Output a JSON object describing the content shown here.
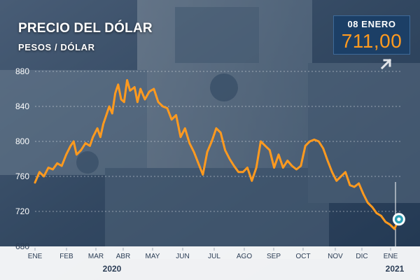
{
  "header": {
    "title": "PRECIO DEL DÓLAR",
    "subtitle": "PESOS / DÓLAR"
  },
  "badge": {
    "date": "08 ENERO",
    "value": "711,00",
    "arrow_icon": "arrow-up-right-icon"
  },
  "colors": {
    "line": "#ff9a1f",
    "badge_bg": "#1c3f66",
    "text": "#ffffff",
    "marker_ring": "#2a9fb5"
  },
  "chart_data": {
    "type": "line",
    "title": "PRECIO DEL DÓLAR",
    "ylabel": "PESOS / DÓLAR",
    "xlabel": "",
    "ylim": [
      680,
      880
    ],
    "yticks": [
      680,
      720,
      760,
      800,
      840,
      880
    ],
    "grid": true,
    "x_tick_labels": [
      "ENE",
      "FEB",
      "MAR",
      "ABR",
      "MAY",
      "JUN",
      "JUL",
      "AGO",
      "SEP",
      "OCT",
      "NOV",
      "DIC",
      "ENE"
    ],
    "year_labels": [
      "2020",
      "2021"
    ],
    "series": [
      {
        "name": "",
        "x_months": [
          0,
          0.15,
          0.3,
          0.45,
          0.6,
          0.75,
          0.9,
          1.05,
          1.2,
          1.3,
          1.4,
          1.55,
          1.7,
          1.85,
          1.95,
          2.1,
          2.2,
          2.3,
          2.4,
          2.5,
          2.6,
          2.7,
          2.8,
          2.9,
          3.0,
          3.1,
          3.2,
          3.35,
          3.45,
          3.55,
          3.7,
          3.85,
          4.0,
          4.15,
          4.3,
          4.45,
          4.6,
          4.75,
          4.9,
          5.05,
          5.2,
          5.35,
          5.5,
          5.65,
          5.8,
          5.95,
          6.1,
          6.25,
          6.4,
          6.55,
          6.7,
          6.85,
          7.0,
          7.15,
          7.3,
          7.45,
          7.6,
          7.75,
          7.9,
          8.05,
          8.2,
          8.35,
          8.5,
          8.65,
          8.8,
          8.95,
          9.1,
          9.25,
          9.4,
          9.55,
          9.7,
          9.85,
          10.0,
          10.15,
          10.3,
          10.45,
          10.6,
          10.75,
          10.9,
          11.05,
          11.2,
          11.35,
          11.5,
          11.65,
          11.8,
          11.95,
          12.1,
          12.25
        ],
        "values": [
          753,
          765,
          760,
          770,
          768,
          775,
          772,
          785,
          795,
          800,
          785,
          790,
          798,
          795,
          805,
          815,
          805,
          820,
          830,
          840,
          832,
          855,
          865,
          848,
          845,
          870,
          858,
          862,
          845,
          860,
          848,
          857,
          860,
          845,
          840,
          838,
          825,
          830,
          805,
          815,
          798,
          788,
          775,
          762,
          788,
          800,
          815,
          810,
          790,
          780,
          772,
          765,
          765,
          770,
          755,
          770,
          800,
          795,
          790,
          770,
          785,
          770,
          778,
          772,
          768,
          772,
          795,
          800,
          802,
          800,
          792,
          778,
          765,
          755,
          760,
          765,
          750,
          748,
          752,
          740,
          730,
          725,
          718,
          715,
          708,
          705,
          700,
          711
        ]
      }
    ],
    "last_point": {
      "x_month": 12.25,
      "value": 711
    }
  }
}
